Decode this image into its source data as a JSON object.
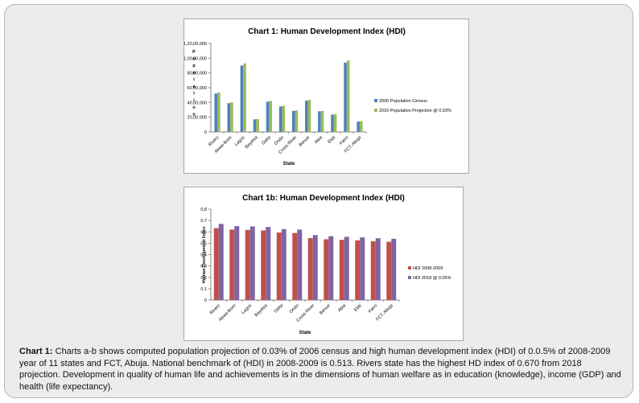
{
  "chart_data": [
    {
      "type": "bar",
      "title": "Chart 1: Human Development Index (HDI)",
      "xlabel": "State",
      "ylabel": "Population",
      "ylim": [
        0,
        12000000
      ],
      "yticks": [
        "0",
        "20,00,000",
        "40,00,000",
        "60,00,000",
        "80,00,000",
        "1,00,00,000",
        "1,20,00,000"
      ],
      "categories": [
        "Rivers",
        "Akwa-Ibom",
        "Lagos",
        "Bayelsa",
        "Delta",
        "Ondo",
        "Cross River",
        "Benue",
        "Abia",
        "Ekiti",
        "Kano",
        "FCT, Abuja"
      ],
      "series": [
        {
          "name": "2006 Population Census",
          "color": "#4f81bd",
          "values": [
            5200000,
            3900000,
            9000000,
            1700000,
            4100000,
            3450000,
            2850000,
            4250000,
            2800000,
            2350000,
            9400000,
            1400000
          ]
        },
        {
          "name": "2016 Population Projection @ 0.03%",
          "color": "#9bbb59",
          "values": [
            5350000,
            4000000,
            9300000,
            1750000,
            4200000,
            3550000,
            2900000,
            4350000,
            2850000,
            2400000,
            9700000,
            1450000
          ]
        }
      ],
      "legend": "right"
    },
    {
      "type": "bar",
      "title": "Chart 1b: Human Development Index (HDI)",
      "xlabel": "State",
      "ylabel": "Human Development Index",
      "ylim": [
        0,
        0.8
      ],
      "yticks": [
        "0",
        "0.1",
        "0.2",
        "0.3",
        "0.4",
        "0.5",
        "0.6",
        "0.7",
        "0.8"
      ],
      "categories": [
        "Rivers",
        "Akwa-Ibom",
        "Lagos",
        "Bayelsa",
        "Delta",
        "Ondo",
        "Cross River",
        "Benue",
        "Abia",
        "Ekiti",
        "Kano",
        "FCT, Abuja"
      ],
      "series": [
        {
          "name": "HDI 2008-2009",
          "color": "#c0504d",
          "values": [
            0.633,
            0.62,
            0.617,
            0.612,
            0.594,
            0.59,
            0.545,
            0.535,
            0.53,
            0.525,
            0.518,
            0.513
          ]
        },
        {
          "name": "HDI 2018 @ 0.05%",
          "color": "#8064a2",
          "values": [
            0.67,
            0.651,
            0.648,
            0.643,
            0.624,
            0.62,
            0.572,
            0.562,
            0.556,
            0.551,
            0.544,
            0.539
          ]
        }
      ],
      "legend": "right"
    }
  ],
  "caption": {
    "label": "Chart 1:",
    "text": " Charts a-b shows computed population projection of 0.03% of 2006 census and high human development index (HDI) of 0.0.5% of 2008-2009 year of 11 states and FCT, Abuja.  National benchmark of (HDI) in 2008-2009 is 0.513. Rivers state has the highest HD index of 0.670 from 2018 projection.  Development in quality of human life and achievements is in the dimensions of human welfare as in education (knowledge), income (GDP) and health (life expectancy)."
  }
}
